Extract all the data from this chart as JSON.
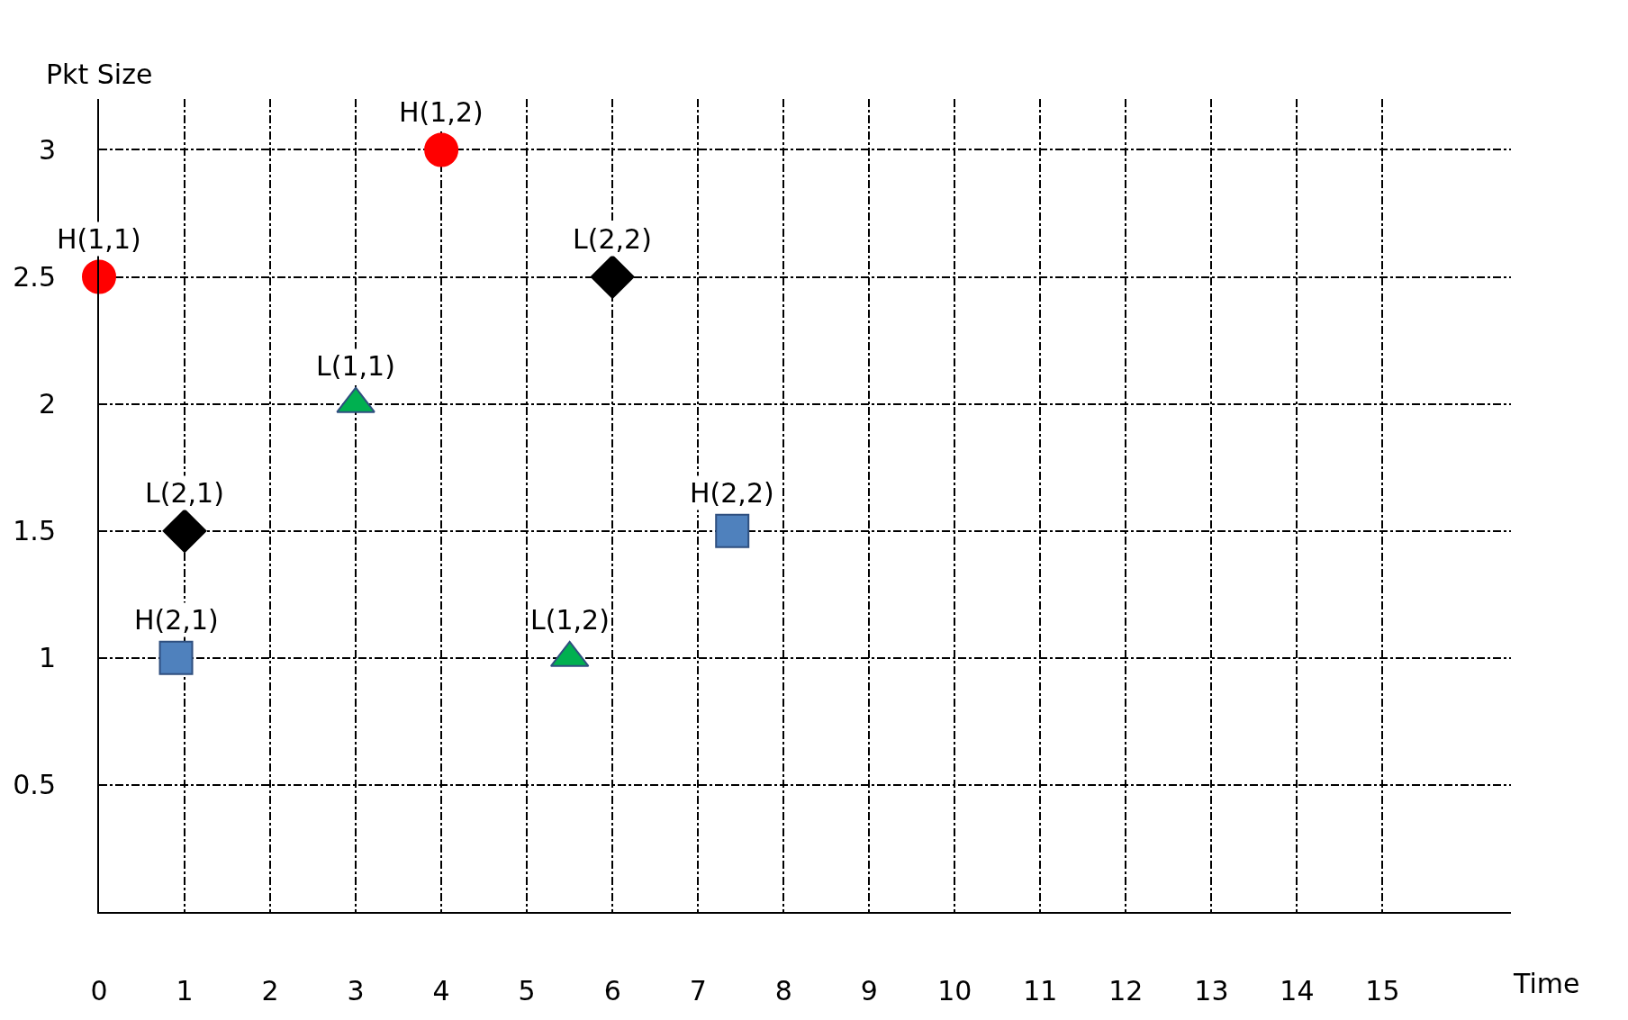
{
  "chart_data": {
    "type": "scatter",
    "xlabel": "Time",
    "ylabel": "Pkt Size",
    "xlim": [
      0,
      16.5
    ],
    "ylim": [
      0,
      3.2
    ],
    "xticks": [
      0,
      1,
      2,
      3,
      4,
      5,
      6,
      7,
      8,
      9,
      10,
      11,
      12,
      13,
      14,
      15
    ],
    "yticks": [
      0.5,
      1,
      1.5,
      2,
      2.5,
      3
    ],
    "grid": true,
    "series": [
      {
        "color": "#ff0000",
        "marker": "circle",
        "x": [
          0,
          4
        ],
        "values": [
          2.5,
          3
        ]
      },
      {
        "color": "#4f81bd",
        "marker": "square",
        "x": [
          0.9,
          7.4
        ],
        "values": [
          1,
          1.5
        ]
      },
      {
        "color": "#00b050",
        "marker": "triangle",
        "x": [
          3,
          5.5
        ],
        "values": [
          2,
          1
        ]
      },
      {
        "color": "#000000",
        "marker": "diamond",
        "x": [
          1,
          6
        ],
        "values": [
          1.5,
          2.5
        ]
      }
    ],
    "annotations": [
      {
        "text": "H(1,1)",
        "x": 0,
        "y": 2.5
      },
      {
        "text": "H(1,2)",
        "x": 4,
        "y": 3
      },
      {
        "text": "H(2,1)",
        "x": 0.9,
        "y": 1
      },
      {
        "text": "H(2,2)",
        "x": 7.4,
        "y": 1.5
      },
      {
        "text": "L(1,1)",
        "x": 3,
        "y": 2
      },
      {
        "text": "L(1,2)",
        "x": 5.5,
        "y": 1
      },
      {
        "text": "L(2,1)",
        "x": 1,
        "y": 1.5
      },
      {
        "text": "L(2,2)",
        "x": 6,
        "y": 2.5
      }
    ]
  }
}
